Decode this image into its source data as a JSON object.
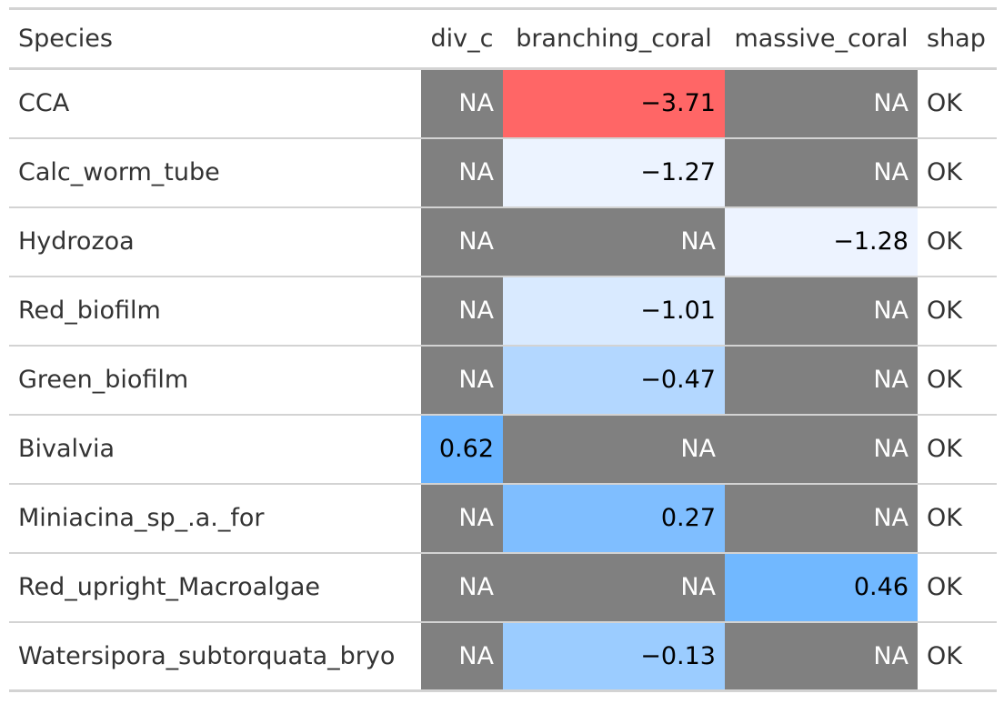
{
  "chart_data": {
    "type": "table",
    "columns": [
      "Species",
      "div_c",
      "branching_coral",
      "massive_coral",
      "shap"
    ],
    "rows": [
      {
        "species": "CCA",
        "div_c": null,
        "branching_coral": -3.71,
        "massive_coral": null,
        "shap": "OK"
      },
      {
        "species": "Calc_worm_tube",
        "div_c": null,
        "branching_coral": -1.27,
        "massive_coral": null,
        "shap": "OK"
      },
      {
        "species": "Hydrozoa",
        "div_c": null,
        "branching_coral": null,
        "massive_coral": -1.28,
        "shap": "OK"
      },
      {
        "species": "Red_biofilm",
        "div_c": null,
        "branching_coral": -1.01,
        "massive_coral": null,
        "shap": "OK"
      },
      {
        "species": "Green_biofilm",
        "div_c": null,
        "branching_coral": -0.47,
        "massive_coral": null,
        "shap": "OK"
      },
      {
        "species": "Bivalvia",
        "div_c": 0.62,
        "branching_coral": null,
        "massive_coral": null,
        "shap": "OK"
      },
      {
        "species": "Miniacina_sp_.a._for",
        "div_c": null,
        "branching_coral": 0.27,
        "massive_coral": null,
        "shap": "OK"
      },
      {
        "species": "Red_upright_Macroalgae",
        "div_c": null,
        "branching_coral": null,
        "massive_coral": 0.46,
        "shap": "OK"
      },
      {
        "species": "Watersipora_subtorquata_bryo",
        "div_c": null,
        "branching_coral": -0.13,
        "massive_coral": null,
        "shap": "OK"
      }
    ],
    "na_label": "NA",
    "colors": {
      "na_fill": "#808080",
      "negative_strong": "#ff6666",
      "light_near_neutral": "#eef4ff",
      "positive_strong": "#66b2ff",
      "grid_line": "#d3d3d3",
      "text": "#333333"
    }
  }
}
